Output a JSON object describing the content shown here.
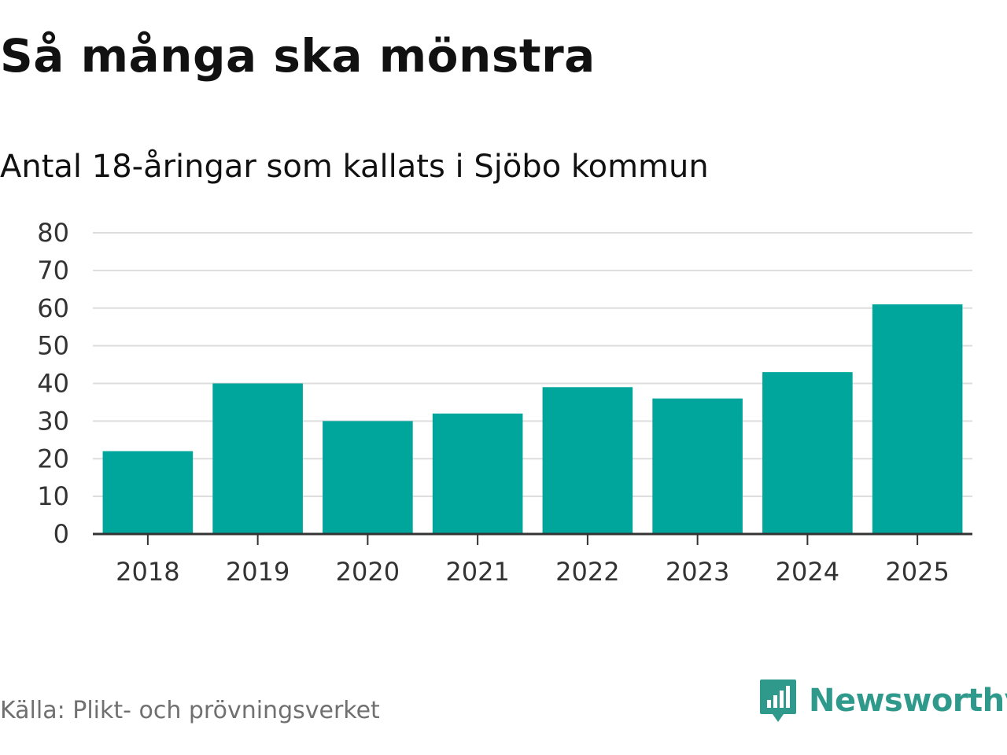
{
  "title": "Så många ska mönstra",
  "subtitle": "Antal 18-åringar som kallats i Sjöbo kommun",
  "source": "Källa: Plikt- och prövningsverket",
  "brand": {
    "name": "Newsworthy",
    "icon": "newsworthy-logo-icon",
    "color": "#2f9a8c"
  },
  "chart_data": {
    "type": "bar",
    "categories": [
      "2018",
      "2019",
      "2020",
      "2021",
      "2022",
      "2023",
      "2024",
      "2025"
    ],
    "values": [
      22,
      40,
      30,
      32,
      39,
      36,
      43,
      61
    ],
    "ylim": [
      0,
      80
    ],
    "yticks": [
      0,
      10,
      20,
      30,
      40,
      50,
      60,
      70,
      80
    ],
    "grid": true,
    "bar_color": "#00a59c",
    "grid_color": "#dddddd",
    "axis_color": "#333333"
  }
}
